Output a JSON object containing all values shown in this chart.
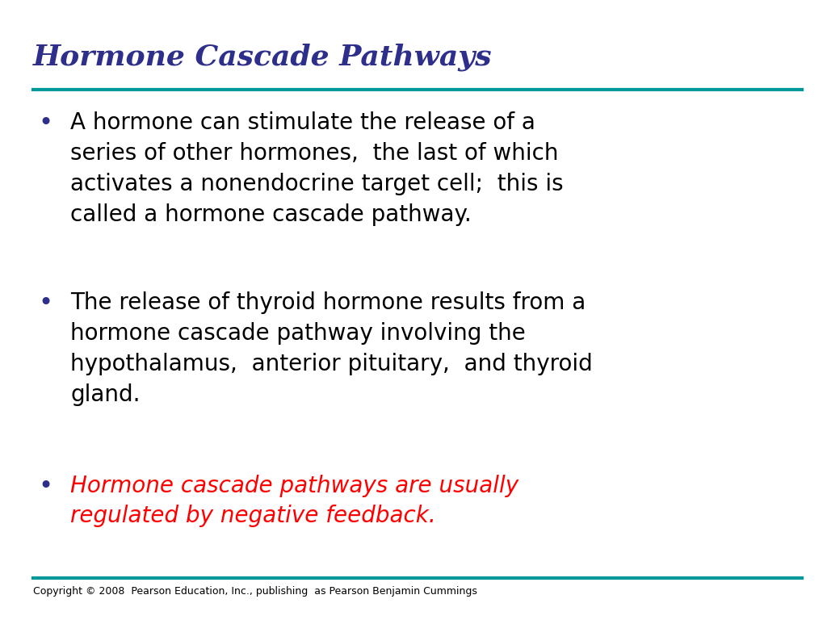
{
  "title": "Hormone Cascade Pathways",
  "title_color": "#2E2E8B",
  "title_fontsize": 26,
  "title_style": "italic",
  "title_weight": "bold",
  "title_font": "serif",
  "top_line_color": "#009999",
  "bottom_line_color": "#009999",
  "background_color": "#FFFFFF",
  "bullet_color": "#2E2E8B",
  "bullet_points": [
    {
      "text": "A hormone can stimulate the release of a\nseries of other hormones,  the last of which\nactivates a nonendocrine target cell;  this is\ncalled a hormone cascade pathway.",
      "color": "#000000",
      "style": "normal",
      "weight": "normal",
      "font": "sans-serif"
    },
    {
      "text": "The release of thyroid hormone results from a\nhormone cascade pathway involving the\nhypothalamus,  anterior pituitary,  and thyroid\ngland.",
      "color": "#000000",
      "style": "normal",
      "weight": "normal",
      "font": "sans-serif"
    },
    {
      "text": "Hormone cascade pathways are usually\nregulated by negative feedback.",
      "color": "#FF0000",
      "style": "italic",
      "weight": "normal",
      "font": "sans-serif"
    }
  ],
  "bullet_fontsize": 20,
  "copyright_text": "Copyright © 2008  Pearson Education, Inc., publishing  as Pearson Benjamin Cummings",
  "copyright_fontsize": 9,
  "copyright_color": "#000000",
  "fig_width": 10.24,
  "fig_height": 7.68,
  "dpi": 100
}
